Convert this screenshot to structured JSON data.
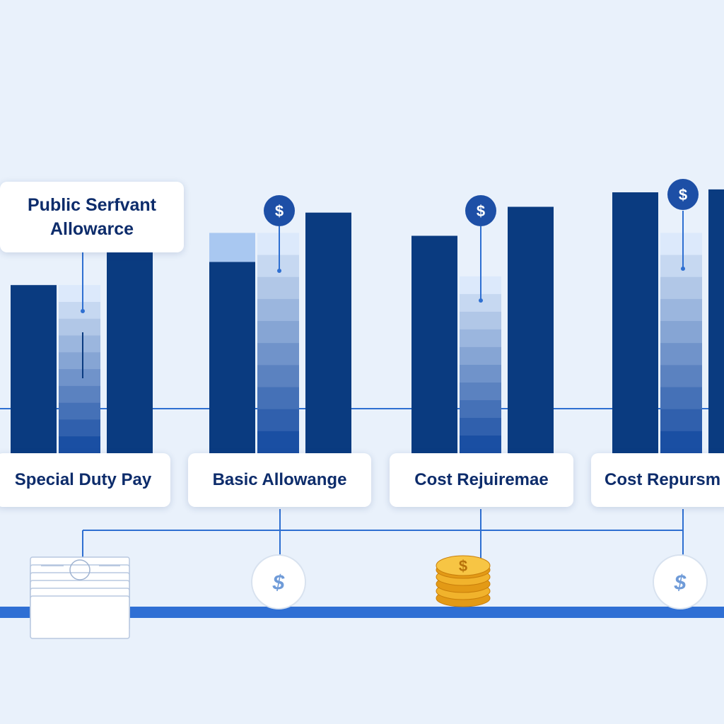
{
  "title": "Public Serfvant Allowarce",
  "chart_data": {
    "type": "bar",
    "title": "Public Serfvant Allowarce",
    "categories": [
      "Special Duty Pay",
      "Basic Allowange",
      "Cost Rejuiremae",
      "Cost Repursm"
    ],
    "series": [
      {
        "values": [
          58,
          66,
          75,
          90
        ],
        "style": "solid",
        "color": "#0a3b80"
      },
      {
        "values": [
          58,
          76,
          61,
          76
        ],
        "style": "gradient",
        "color": "#2e6fd1"
      },
      {
        "values": [
          71,
          83,
          85,
          91
        ],
        "style": "solid",
        "color": "#0a3b80"
      }
    ],
    "top_band": {
      "series_index": 0,
      "category_index": 1,
      "value": 66,
      "extra": 10
    },
    "ylim": [
      0,
      100
    ],
    "grid": false,
    "legend": "none",
    "markers": {
      "dollar_badge": "$",
      "icons": [
        "banknote-stack-icon",
        "dollar-coin-icon",
        "gold-coin-stack-icon",
        "dollar-coin-icon"
      ]
    },
    "colors": {
      "background": "#e9f1fb",
      "bar_dark": "#0a3b80",
      "gradient_top": "#dce9fb",
      "gradient_bottom": "#1a4fa3",
      "connector": "#2e6fd1",
      "baseline": "#2f6fd4",
      "badge": "#1d4fa6"
    }
  }
}
